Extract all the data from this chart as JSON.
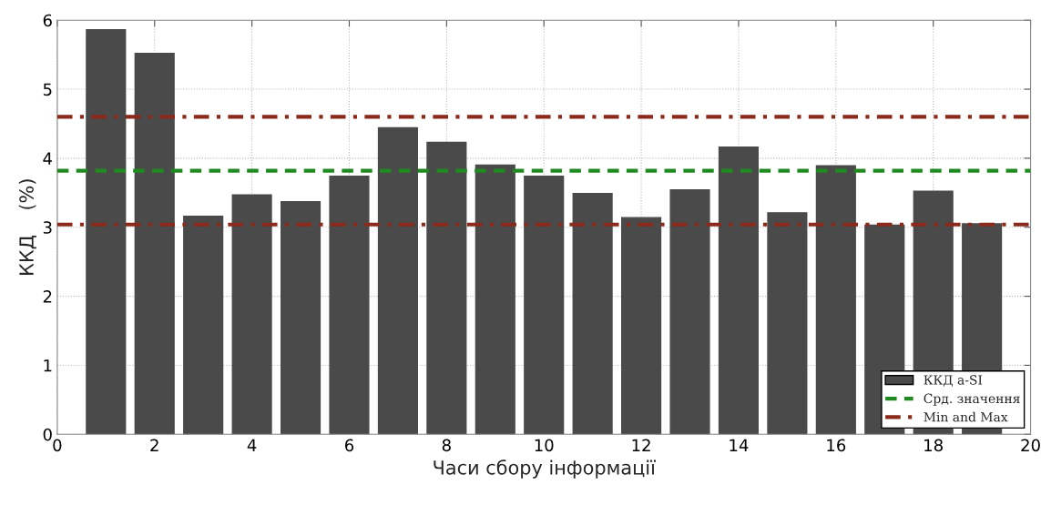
{
  "chart_data": {
    "type": "bar",
    "xlabel": "Часи сбору інформації",
    "ylabel": "ККД    (%)",
    "x": [
      1,
      2,
      3,
      4,
      5,
      6,
      7,
      8,
      9,
      10,
      11,
      12,
      13,
      14,
      15,
      16,
      17,
      18,
      19
    ],
    "series": [
      {
        "name": "ККД a-SI",
        "color": "#4a4a4a",
        "values": [
          5.86,
          5.52,
          3.16,
          3.47,
          3.37,
          3.74,
          4.44,
          4.23,
          3.9,
          3.74,
          3.49,
          3.14,
          3.54,
          4.16,
          3.21,
          3.89,
          3.03,
          3.52,
          3.05
        ]
      }
    ],
    "ref_lines": [
      {
        "axis": "y",
        "value": 3.82,
        "label": "Срд. значення",
        "color": "#1f8a1f",
        "line_style": "dashed"
      },
      {
        "axis": "y",
        "value": 4.6,
        "label": "Min and Max",
        "color": "#8b2a1a",
        "line_style": "dashdot"
      },
      {
        "axis": "y",
        "value": 3.04,
        "color": "#8b2a1a",
        "line_style": "dashdot"
      }
    ],
    "xlim": [
      0,
      20
    ],
    "xticks": [
      0,
      2,
      4,
      6,
      8,
      10,
      12,
      14,
      16,
      18,
      20
    ],
    "ylim": [
      0,
      6
    ],
    "yticks": [
      0,
      1,
      2,
      3,
      4,
      5,
      6
    ],
    "grid": true,
    "legend": "bottom right"
  }
}
